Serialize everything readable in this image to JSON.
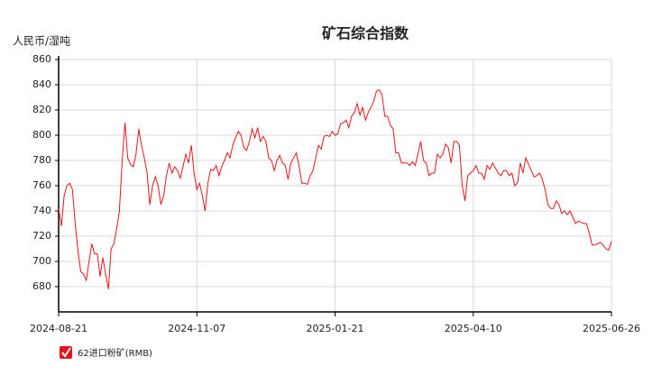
{
  "chart_data": {
    "type": "line",
    "title": "矿石综合指数",
    "y_label": "人民币/湿吨",
    "categories": [
      "2024-08-21",
      null,
      null,
      null,
      null,
      null,
      null,
      null,
      null,
      null,
      null,
      null,
      null,
      null,
      null,
      null,
      null,
      null,
      null,
      null,
      null,
      null,
      null,
      null,
      null,
      null,
      null,
      null,
      null,
      null,
      null,
      null,
      null,
      null,
      null,
      null,
      null,
      null,
      null,
      null,
      null,
      null,
      null,
      null,
      null,
      null,
      null,
      null,
      null,
      null,
      "2024-11-07",
      null,
      null,
      null,
      null,
      null,
      null,
      null,
      null,
      null,
      null,
      null,
      null,
      null,
      null,
      null,
      null,
      null,
      null,
      null,
      null,
      null,
      null,
      null,
      null,
      null,
      null,
      null,
      null,
      null,
      null,
      null,
      null,
      null,
      null,
      null,
      null,
      null,
      null,
      null,
      null,
      null,
      null,
      null,
      null,
      null,
      null,
      null,
      null,
      null,
      "2025-01-21",
      null,
      null,
      null,
      null,
      null,
      null,
      null,
      null,
      null,
      null,
      null,
      null,
      null,
      null,
      null,
      null,
      null,
      null,
      null,
      null,
      null,
      null,
      null,
      null,
      null,
      null,
      null,
      null,
      null,
      null,
      null,
      null,
      null,
      null,
      null,
      null,
      null,
      null,
      null,
      null,
      null,
      null,
      null,
      null,
      null,
      null,
      null,
      null,
      null,
      "2025-04-10",
      null,
      null,
      null,
      null,
      null,
      null,
      null,
      null,
      null,
      null,
      null,
      null,
      null,
      null,
      null,
      null,
      null,
      null,
      null,
      null,
      null,
      null,
      null,
      null,
      null,
      null,
      null,
      null,
      null,
      null,
      null,
      null,
      null,
      null,
      null,
      null,
      null,
      null,
      null,
      null,
      null,
      null,
      null,
      null,
      null,
      null,
      null,
      null,
      null,
      "2025-06-26"
    ],
    "series": [
      {
        "name": "62进口粉矿(RMB)",
        "color": "#e8141c",
        "values": [
          742,
          728,
          752,
          760,
          762,
          757,
          730,
          708,
          692,
          690,
          685,
          700,
          714,
          706,
          706,
          688,
          703,
          690,
          678,
          710,
          714,
          726,
          740,
          780,
          810,
          782,
          777,
          775,
          785,
          805,
          792,
          782,
          770,
          745,
          760,
          767,
          760,
          745,
          752,
          768,
          778,
          770,
          775,
          772,
          766,
          775,
          785,
          778,
          792,
          770,
          757,
          762,
          752,
          740,
          762,
          773,
          772,
          776,
          768,
          775,
          780,
          786,
          782,
          792,
          798,
          803,
          800,
          790,
          788,
          795,
          805,
          798,
          806,
          795,
          799,
          795,
          782,
          780,
          772,
          780,
          784,
          778,
          776,
          765,
          778,
          782,
          786,
          775,
          762,
          762,
          761,
          768,
          772,
          782,
          792,
          789,
          799,
          800,
          799,
          803,
          800,
          801,
          809,
          810,
          812,
          806,
          815,
          818,
          825,
          816,
          822,
          812,
          818,
          822,
          827,
          835,
          836,
          832,
          815,
          815,
          808,
          805,
          786,
          786,
          778,
          778,
          778,
          776,
          779,
          776,
          785,
          795,
          780,
          778,
          768,
          770,
          770,
          785,
          782,
          785,
          793,
          790,
          778,
          795,
          795,
          792,
          760,
          748,
          768,
          770,
          772,
          776,
          770,
          770,
          765,
          776,
          773,
          778,
          774,
          770,
          768,
          772,
          772,
          768,
          770,
          760,
          762,
          778,
          770,
          782,
          777,
          772,
          767,
          768,
          770,
          765,
          757,
          745,
          742,
          742,
          748,
          745,
          738,
          740,
          737,
          740,
          735,
          730,
          732,
          731,
          730,
          730,
          722,
          713,
          713,
          714,
          715,
          713,
          710,
          709,
          716
        ]
      }
    ],
    "ylim": [
      660,
      860
    ],
    "yticks": [
      680,
      700,
      720,
      740,
      760,
      780,
      800,
      820,
      840,
      860
    ],
    "grid": true
  }
}
